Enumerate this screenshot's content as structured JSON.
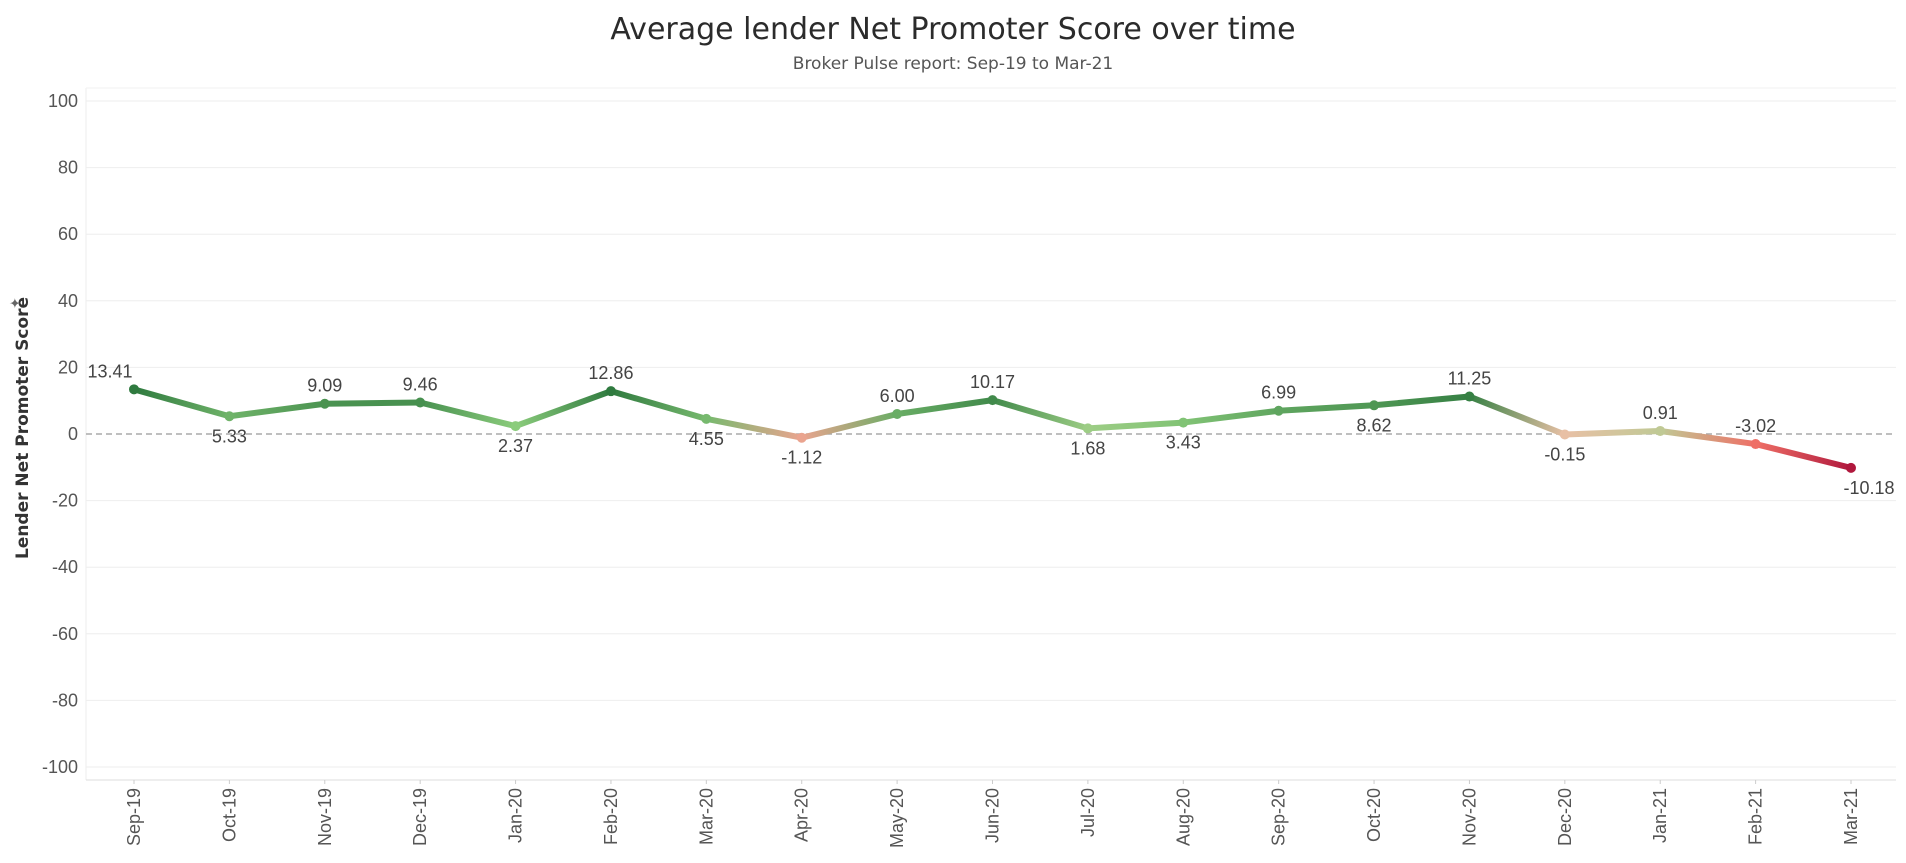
{
  "header": {
    "title": "Average lender Net Promoter Score over time",
    "subtitle": "Broker Pulse report: Sep-19 to Mar-21"
  },
  "chart_data": {
    "type": "line",
    "title": "Average lender Net Promoter Score over time",
    "subtitle": "Broker Pulse report: Sep-19 to Mar-21",
    "xlabel": "",
    "ylabel": "Lender Net Promoter Score",
    "ylim": [
      -100,
      100
    ],
    "yticks": [
      100,
      80,
      60,
      40,
      20,
      0,
      -20,
      -40,
      -60,
      -80,
      -100
    ],
    "reference_line": 0,
    "grid": true,
    "categories": [
      "Sep-19",
      "Oct-19",
      "Nov-19",
      "Dec-19",
      "Jan-20",
      "Feb-20",
      "Mar-20",
      "Apr-20",
      "May-20",
      "Jun-20",
      "Jul-20",
      "Aug-20",
      "Sep-20",
      "Oct-20",
      "Nov-20",
      "Dec-20",
      "Jan-21",
      "Feb-21",
      "Mar-21"
    ],
    "values": [
      13.41,
      5.33,
      9.09,
      9.46,
      2.37,
      12.86,
      4.55,
      -1.12,
      6.0,
      10.17,
      1.68,
      3.43,
      6.99,
      8.62,
      11.25,
      -0.15,
      0.91,
      -3.02,
      -10.18
    ],
    "labels": [
      "13.41",
      "5.33",
      "9.09",
      "9.46",
      "2.37",
      "12.86",
      "4.55",
      "-1.12",
      "6.00",
      "10.17",
      "1.68",
      "3.43",
      "6.99",
      "8.62",
      "11.25",
      "-0.15",
      "0.91",
      "-3.02",
      "-10.18"
    ],
    "label_position": [
      "above",
      "below",
      "above",
      "above",
      "below",
      "above",
      "below",
      "below",
      "above",
      "above",
      "below",
      "below",
      "above",
      "below",
      "above",
      "below",
      "above",
      "above",
      "below"
    ],
    "color_scale": {
      "negative_strong": "#b0183d",
      "negative_mid": "#ee6f66",
      "neutral": "#e8c4a8",
      "positive_light": "#8fcf7e",
      "positive_strong": "#2f7a3f"
    },
    "gridline_color": "#eeeeee",
    "zero_line_color": "#aaaaaa"
  }
}
